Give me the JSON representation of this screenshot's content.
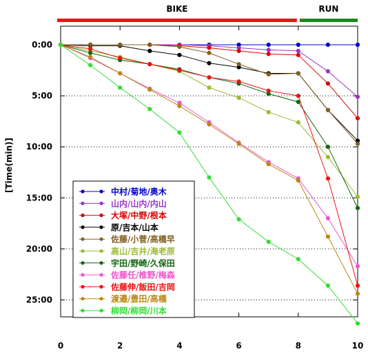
{
  "chart_data": {
    "type": "line",
    "ylabel": "[Time(min)]",
    "x_ticks": [
      "0",
      "2",
      "4",
      "6",
      "8",
      "10"
    ],
    "y_ticks": [
      "0:00",
      "5:00",
      "10:00",
      "15:00",
      "20:00",
      "25:00"
    ],
    "xlim": [
      0,
      10
    ],
    "ylim": [
      0,
      28.5
    ],
    "y_inverted": true,
    "grid": "horizontal-dotted",
    "legend_placement": "bottom-left",
    "phases": [
      {
        "label": "BIKE",
        "x_start": 0,
        "x_end": 8,
        "color": "#ee1111"
      },
      {
        "label": "RUN",
        "x_start": 8,
        "x_end": 10,
        "color": "#1a8a1a"
      }
    ],
    "x": [
      0,
      1,
      2,
      3,
      4,
      5,
      6,
      7,
      8,
      9,
      10
    ],
    "series": [
      {
        "name": "中村/菊地/奥木",
        "color": "#0000cc",
        "values": [
          0,
          0,
          0,
          0,
          0,
          0,
          0,
          0,
          0,
          0,
          0
        ]
      },
      {
        "name": "山内/山内/内山",
        "color": "#9933cc",
        "values": [
          0,
          0,
          0,
          0,
          0,
          0.1,
          0.3,
          0.5,
          0.6,
          2.6,
          5.1
        ]
      },
      {
        "name": "大塚/中野/根本",
        "color": "#dd0000",
        "values": [
          0,
          0,
          0,
          0,
          0.1,
          0.3,
          0.6,
          0.9,
          1.0,
          3.8,
          7.2
        ]
      },
      {
        "name": "原/吉本/山本",
        "color": "#000000",
        "values": [
          0,
          0.1,
          0.1,
          0.6,
          1.0,
          1.8,
          2.2,
          2.8,
          2.8,
          6.4,
          9.4
        ]
      },
      {
        "name": "佐藤/小菅/高橋早",
        "color": "#806020",
        "values": [
          0,
          0,
          0,
          0,
          0.2,
          0.8,
          1.9,
          2.9,
          2.8,
          6.4,
          9.7
        ]
      },
      {
        "name": "高山/吉井/海老原",
        "color": "#99bb33",
        "values": [
          0,
          0.6,
          1.2,
          1.9,
          2.6,
          4.2,
          5.2,
          6.6,
          7.6,
          11.0,
          14.9
        ]
      },
      {
        "name": "宇田/野崎/久保田",
        "color": "#116611",
        "values": [
          0,
          0.8,
          1.5,
          1.9,
          2.4,
          3.2,
          3.8,
          4.8,
          5.6,
          10.0,
          16.0
        ]
      },
      {
        "name": "佐藤任/椎野/梅森",
        "color": "#ee55cc",
        "values": [
          0,
          1.3,
          2.8,
          4.3,
          5.7,
          7.6,
          9.6,
          11.5,
          13.1,
          17.0,
          21.7
        ]
      },
      {
        "name": "佐藤伸/飯田/吉岡",
        "color": "#ee1111",
        "values": [
          0,
          0.4,
          1.3,
          1.9,
          2.5,
          3.2,
          3.6,
          4.5,
          5.0,
          13.1,
          23.6
        ]
      },
      {
        "name": "渡邉/豊田/高橋",
        "color": "#bb8811",
        "values": [
          0,
          1.2,
          2.8,
          4.4,
          6.0,
          7.8,
          9.7,
          11.7,
          13.3,
          18.8,
          24.4
        ]
      },
      {
        "name": "柳岡/柳岡/川本",
        "color": "#33dd33",
        "values": [
          0,
          2.0,
          4.2,
          6.3,
          8.6,
          13.0,
          17.1,
          19.3,
          21.0,
          23.6,
          27.3
        ]
      }
    ]
  }
}
